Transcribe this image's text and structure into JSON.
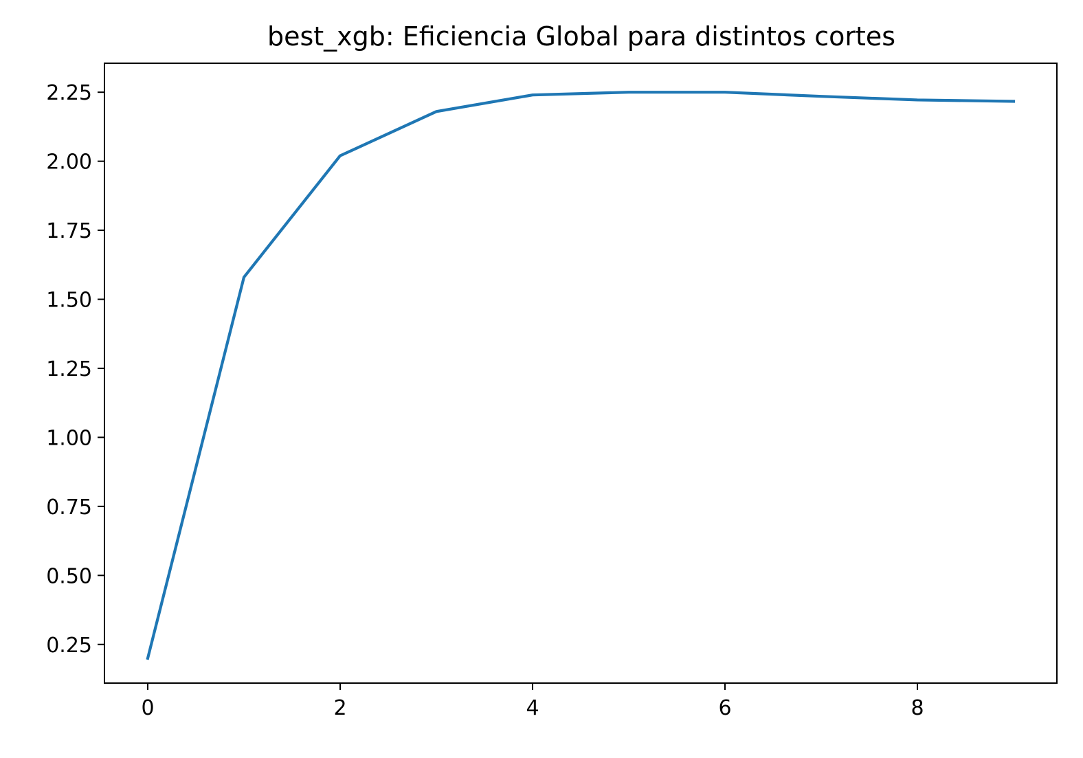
{
  "chart_data": {
    "type": "line",
    "title": "best_xgb: Eficiencia Global para distintos cortes",
    "xlabel": "",
    "ylabel": "",
    "x": [
      0,
      1,
      2,
      3,
      4,
      5,
      6,
      7,
      8,
      9
    ],
    "series": [
      {
        "values": [
          0.2,
          1.58,
          2.02,
          2.18,
          2.24,
          2.25,
          2.25,
          2.235,
          2.222,
          2.217
        ],
        "color": "#1f77b4"
      }
    ],
    "xlim": [
      -0.45,
      9.45
    ],
    "ylim": [
      0.11,
      2.355
    ],
    "xticks": [
      0,
      2,
      4,
      6,
      8
    ],
    "xtick_labels": [
      "0",
      "2",
      "4",
      "6",
      "8"
    ],
    "yticks": [
      0.25,
      0.5,
      0.75,
      1.0,
      1.25,
      1.5,
      1.75,
      2.0,
      2.25
    ],
    "ytick_labels": [
      "0.25",
      "0.50",
      "0.75",
      "1.00",
      "1.25",
      "1.50",
      "1.75",
      "2.00",
      "2.25"
    ],
    "grid": false,
    "legend": null
  }
}
